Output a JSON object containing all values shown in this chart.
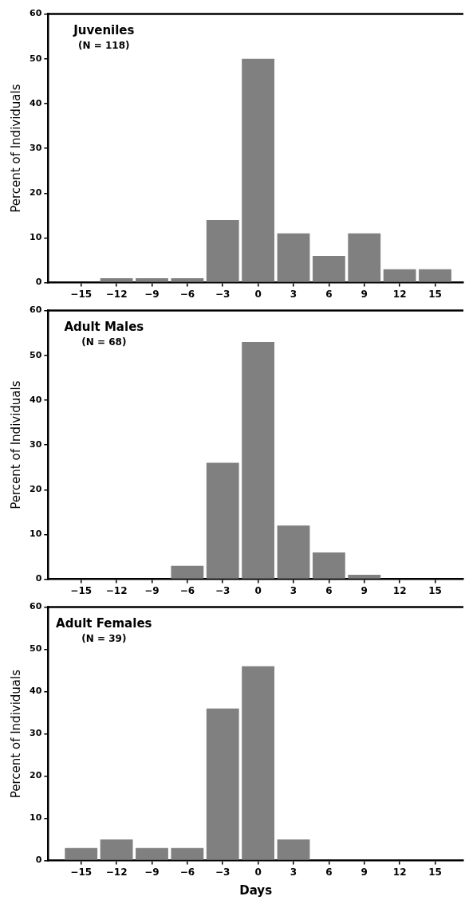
{
  "chart_data": [
    {
      "type": "histogram",
      "bins": [
        -16.5,
        -13.5,
        -10.5,
        -7.5,
        -4.5,
        -1.5,
        1.5,
        4.5,
        7.5,
        10.5,
        13.5,
        16.5
      ],
      "values": [
        0,
        1,
        1,
        1,
        14,
        50,
        11,
        6,
        11,
        3,
        3
      ],
      "color": "#808080",
      "xlim": [
        -17.8,
        17.4
      ],
      "ylim": [
        0,
        60
      ],
      "xticks": [
        -15,
        -12,
        -9,
        -6,
        -3,
        0,
        3,
        6,
        9,
        12,
        15
      ],
      "yticks": [
        0,
        10,
        20,
        30,
        40,
        50,
        60
      ],
      "ylabel": "Percent of Individuals",
      "annotations": [
        "Juveniles",
        "(N = 118)"
      ],
      "grid": false
    },
    {
      "type": "histogram",
      "bins": [
        -16.5,
        -13.5,
        -10.5,
        -7.5,
        -4.5,
        -1.5,
        1.5,
        4.5,
        7.5,
        10.5,
        13.5,
        16.5
      ],
      "values": [
        0,
        0,
        0,
        3,
        26,
        53,
        12,
        6,
        1,
        0,
        0
      ],
      "color": "#808080",
      "xlim": [
        -17.8,
        17.4
      ],
      "ylim": [
        0,
        60
      ],
      "xticks": [
        -15,
        -12,
        -9,
        -6,
        -3,
        0,
        3,
        6,
        9,
        12,
        15
      ],
      "yticks": [
        0,
        10,
        20,
        30,
        40,
        50,
        60
      ],
      "ylabel": "Percent of Individuals",
      "annotations": [
        "Adult Males",
        "(N = 68)"
      ],
      "grid": false
    },
    {
      "type": "histogram",
      "bins": [
        -16.5,
        -13.5,
        -10.5,
        -7.5,
        -4.5,
        -1.5,
        1.5,
        4.5,
        7.5,
        10.5,
        13.5,
        16.5
      ],
      "values": [
        3,
        5,
        3,
        3,
        36,
        46,
        5,
        0,
        0,
        0,
        0
      ],
      "color": "#808080",
      "xlim": [
        -17.8,
        17.4
      ],
      "ylim": [
        0,
        60
      ],
      "xticks": [
        -15,
        -12,
        -9,
        -6,
        -3,
        0,
        3,
        6,
        9,
        12,
        15
      ],
      "yticks": [
        0,
        10,
        20,
        30,
        40,
        50,
        60
      ],
      "ylabel": "Percent of Individuals",
      "xlabel": "Days",
      "annotations": [
        "Adult Females",
        "(N = 39)"
      ],
      "grid": false
    }
  ]
}
